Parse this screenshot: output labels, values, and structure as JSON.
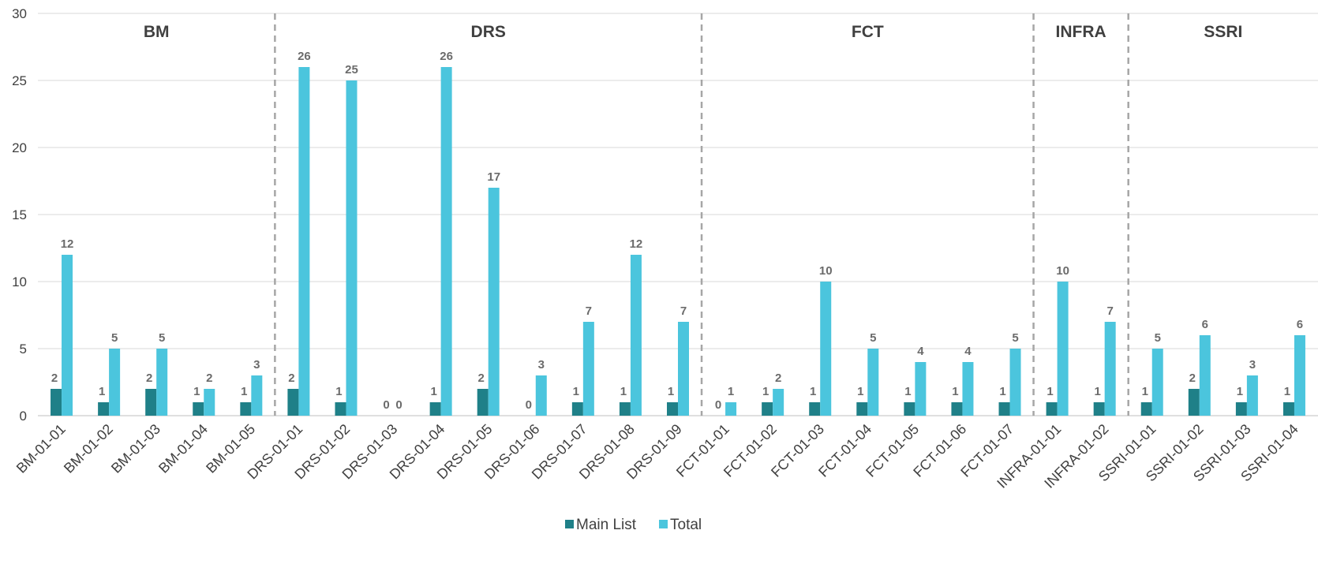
{
  "chart_data": {
    "type": "bar",
    "categories": [
      "BM-01-01",
      "BM-01-02",
      "BM-01-03",
      "BM-01-04",
      "BM-01-05",
      "DRS-01-01",
      "DRS-01-02",
      "DRS-01-03",
      "DRS-01-04",
      "DRS-01-05",
      "DRS-01-06",
      "DRS-01-07",
      "DRS-01-08",
      "DRS-01-09",
      "FCT-01-01",
      "FCT-01-02",
      "FCT-01-03",
      "FCT-01-04",
      "FCT-01-05",
      "FCT-01-06",
      "FCT-01-07",
      "INFRA-01-01",
      "INFRA-01-02",
      "SSRI-01-01",
      "SSRI-01-02",
      "SSRI-01-03",
      "SSRI-01-04"
    ],
    "series": [
      {
        "name": "Main List",
        "color": "#1f8088",
        "values": [
          2,
          1,
          2,
          1,
          1,
          2,
          1,
          0,
          1,
          2,
          0,
          1,
          1,
          1,
          0,
          1,
          1,
          1,
          1,
          1,
          1,
          1,
          1,
          1,
          2,
          1,
          1
        ]
      },
      {
        "name": "Total",
        "color": "#4bc5dd",
        "values": [
          12,
          5,
          5,
          2,
          3,
          26,
          25,
          0,
          26,
          17,
          3,
          7,
          12,
          7,
          1,
          2,
          10,
          5,
          4,
          4,
          5,
          10,
          7,
          5,
          6,
          3,
          6
        ]
      }
    ],
    "groups": [
      {
        "label": "BM",
        "start": 0,
        "end": 4
      },
      {
        "label": "DRS",
        "start": 5,
        "end": 13
      },
      {
        "label": "FCT",
        "start": 14,
        "end": 20
      },
      {
        "label": "INFRA",
        "start": 21,
        "end": 22
      },
      {
        "label": "SSRI",
        "start": 23,
        "end": 26
      }
    ],
    "ylim": [
      0,
      30
    ],
    "yticks": [
      0,
      5,
      10,
      15,
      20,
      25,
      30
    ],
    "grid": true,
    "legend": "bottom-center",
    "title": "",
    "xlabel": "",
    "ylabel": ""
  }
}
